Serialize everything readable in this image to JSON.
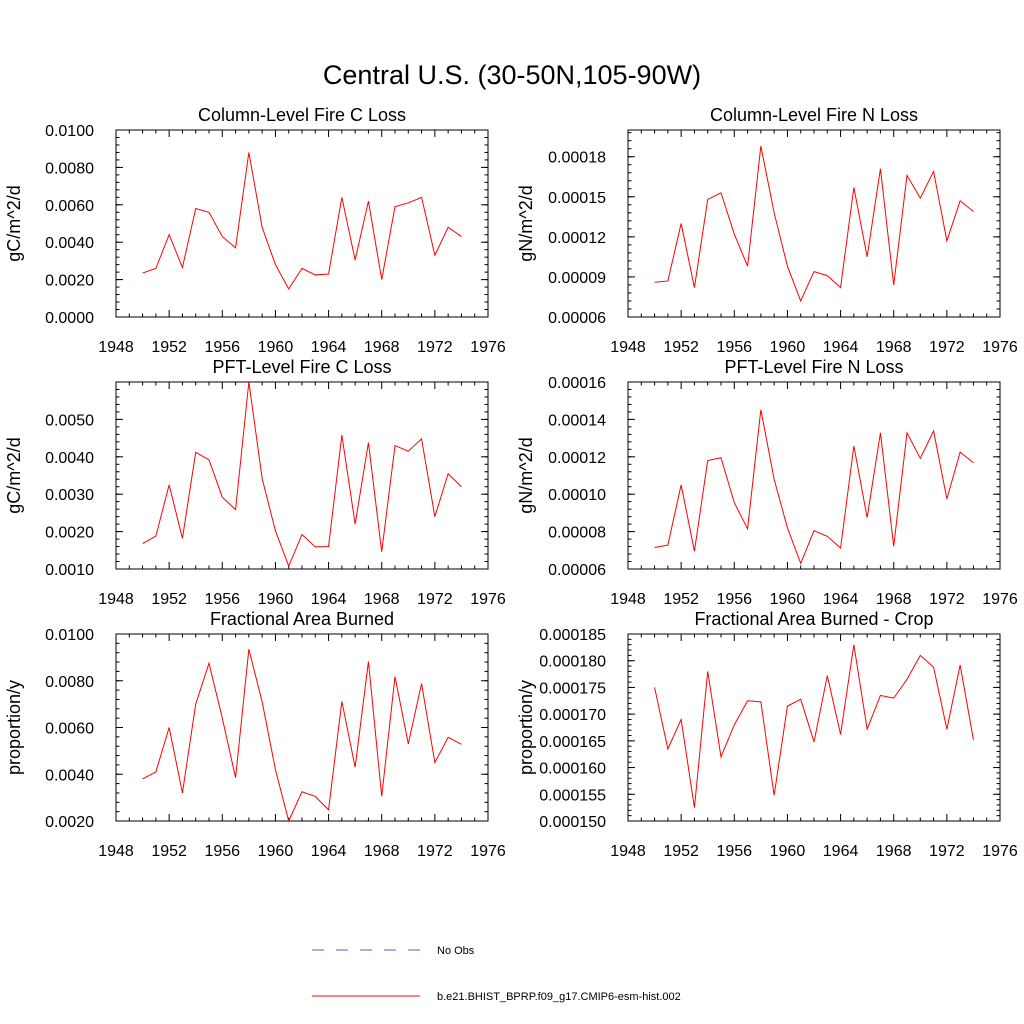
{
  "title": "Central U.S. (30-50N,105-90W)",
  "legend": [
    {
      "label": "No Obs",
      "color": "#5b5bd6",
      "style": "dashed"
    },
    {
      "label": "b.e21.BHIST_BPRP.f09_g17.CMIP6-esm-hist.002",
      "color": "#ff0000",
      "style": "solid"
    }
  ],
  "chart_data": [
    {
      "type": "line",
      "title": "Column-Level Fire C Loss",
      "ylabel": "gC/m^2/d",
      "xlim": [
        1948,
        1976
      ],
      "xticks": [
        "1948",
        "1952",
        "1956",
        "1960",
        "1964",
        "1968",
        "1972",
        "1976"
      ],
      "ylim": [
        0.0,
        0.01
      ],
      "yticks": [
        "0.0000",
        "0.0020",
        "0.0040",
        "0.0060",
        "0.0080",
        "0.0100"
      ],
      "series": [
        {
          "name": "b.e21.BHIST_BPRP.f09_g17.CMIP6-esm-hist.002",
          "color": "#ff0000",
          "x": [
            1950,
            1951,
            1952,
            1953,
            1954,
            1955,
            1956,
            1957,
            1958,
            1959,
            1960,
            1961,
            1962,
            1963,
            1964,
            1965,
            1966,
            1967,
            1968,
            1969,
            1970,
            1971,
            1972,
            1973,
            1974
          ],
          "values": [
            0.00235,
            0.0026,
            0.0044,
            0.00265,
            0.0058,
            0.0056,
            0.0043,
            0.0037,
            0.0088,
            0.0048,
            0.0028,
            0.0015,
            0.0026,
            0.00225,
            0.0023,
            0.0064,
            0.00305,
            0.0062,
            0.002,
            0.0059,
            0.0061,
            0.0064,
            0.0033,
            0.0048,
            0.0043
          ]
        }
      ]
    },
    {
      "type": "line",
      "title": "Column-Level Fire N Loss",
      "ylabel": "gN/m^2/d",
      "xlim": [
        1948,
        1976
      ],
      "xticks": [
        "1948",
        "1952",
        "1956",
        "1960",
        "1964",
        "1968",
        "1972",
        "1976"
      ],
      "ylim": [
        6e-05,
        0.0002
      ],
      "yticks": [
        "0.00006",
        "0.00009",
        "0.00012",
        "0.00015",
        "0.00018"
      ],
      "series": [
        {
          "name": "b.e21.BHIST_BPRP.f09_g17.CMIP6-esm-hist.002",
          "color": "#ff0000",
          "x": [
            1950,
            1951,
            1952,
            1953,
            1954,
            1955,
            1956,
            1957,
            1958,
            1959,
            1960,
            1961,
            1962,
            1963,
            1964,
            1965,
            1966,
            1967,
            1968,
            1969,
            1970,
            1971,
            1972,
            1973,
            1974
          ],
          "values": [
            8.6e-05,
            8.7e-05,
            0.00013,
            8.2e-05,
            0.000148,
            0.000153,
            0.000122,
            9.8e-05,
            0.000188,
            0.000138,
            9.8e-05,
            7.2e-05,
            9.4e-05,
            9.1e-05,
            8.2e-05,
            0.000157,
            0.000105,
            0.000171,
            8.4e-05,
            0.000166,
            0.000149,
            0.000169,
            0.000117,
            0.000147,
            0.000139
          ]
        }
      ]
    },
    {
      "type": "line",
      "title": "PFT-Level Fire C Loss",
      "ylabel": "gC/m^2/d",
      "xlim": [
        1948,
        1976
      ],
      "xticks": [
        "1948",
        "1952",
        "1956",
        "1960",
        "1964",
        "1968",
        "1972",
        "1976"
      ],
      "ylim": [
        0.001,
        0.006
      ],
      "yticks": [
        "0.0010",
        "0.0020",
        "0.0030",
        "0.0040",
        "0.0050"
      ],
      "series": [
        {
          "name": "b.e21.BHIST_BPRP.f09_g17.CMIP6-esm-hist.002",
          "color": "#ff0000",
          "x": [
            1950,
            1951,
            1952,
            1953,
            1954,
            1955,
            1956,
            1957,
            1958,
            1959,
            1960,
            1961,
            1962,
            1963,
            1964,
            1965,
            1966,
            1967,
            1968,
            1969,
            1970,
            1971,
            1972,
            1973,
            1974
          ],
          "values": [
            0.00168,
            0.00188,
            0.00325,
            0.00182,
            0.00412,
            0.00392,
            0.00292,
            0.00259,
            0.006,
            0.00342,
            0.00202,
            0.00108,
            0.00192,
            0.00159,
            0.0016,
            0.00458,
            0.0022,
            0.00438,
            0.00146,
            0.0043,
            0.00415,
            0.00448,
            0.0024,
            0.00355,
            0.0032
          ]
        }
      ]
    },
    {
      "type": "line",
      "title": "PFT-Level Fire N Loss",
      "ylabel": "gN/m^2/d",
      "xlim": [
        1948,
        1976
      ],
      "xticks": [
        "1948",
        "1952",
        "1956",
        "1960",
        "1964",
        "1968",
        "1972",
        "1976"
      ],
      "ylim": [
        6e-05,
        0.00016
      ],
      "yticks": [
        "0.00006",
        "0.00008",
        "0.00010",
        "0.00012",
        "0.00014",
        "0.00016"
      ],
      "series": [
        {
          "name": "b.e21.BHIST_BPRP.f09_g17.CMIP6-esm-hist.002",
          "color": "#ff0000",
          "x": [
            1950,
            1951,
            1952,
            1953,
            1954,
            1955,
            1956,
            1957,
            1958,
            1959,
            1960,
            1961,
            1962,
            1963,
            1964,
            1965,
            1966,
            1967,
            1968,
            1969,
            1970,
            1971,
            1972,
            1973,
            1974
          ],
          "values": [
            7.15e-05,
            7.28e-05,
            0.000105,
            6.95e-05,
            0.000118,
            0.0001195,
            9.55e-05,
            8.15e-05,
            0.0001452,
            0.000108,
            8.2e-05,
            6.3e-05,
            8.05e-05,
            7.75e-05,
            7.12e-05,
            0.0001258,
            8.75e-05,
            0.0001328,
            7.22e-05,
            0.0001328,
            0.0001192,
            0.0001338,
            9.75e-05,
            0.0001225,
            0.0001168
          ]
        }
      ]
    },
    {
      "type": "line",
      "title": "Fractional Area Burned",
      "ylabel": "proportion/y",
      "xlim": [
        1948,
        1976
      ],
      "xticks": [
        "1948",
        "1952",
        "1956",
        "1960",
        "1964",
        "1968",
        "1972",
        "1976"
      ],
      "ylim": [
        0.002,
        0.01
      ],
      "yticks": [
        "0.0020",
        "0.0040",
        "0.0060",
        "0.0080",
        "0.0100"
      ],
      "series": [
        {
          "name": "b.e21.BHIST_BPRP.f09_g17.CMIP6-esm-hist.002",
          "color": "#ff0000",
          "x": [
            1950,
            1951,
            1952,
            1953,
            1954,
            1955,
            1956,
            1957,
            1958,
            1959,
            1960,
            1961,
            1962,
            1963,
            1964,
            1965,
            1966,
            1967,
            1968,
            1969,
            1970,
            1971,
            1972,
            1973,
            1974
          ],
          "values": [
            0.0038,
            0.0041,
            0.006,
            0.0032,
            0.007,
            0.00875,
            0.0064,
            0.00385,
            0.00935,
            0.0071,
            0.0042,
            0.002,
            0.00325,
            0.00305,
            0.00248,
            0.00712,
            0.0043,
            0.00882,
            0.00305,
            0.00818,
            0.0053,
            0.00788,
            0.0045,
            0.00558,
            0.00528
          ]
        }
      ]
    },
    {
      "type": "line",
      "title": "Fractional Area Burned - Crop",
      "ylabel": "proportion/y",
      "xlim": [
        1948,
        1976
      ],
      "xticks": [
        "1948",
        "1952",
        "1956",
        "1960",
        "1964",
        "1968",
        "1972",
        "1976"
      ],
      "ylim": [
        0.00015,
        0.000185
      ],
      "yticks": [
        "0.000150",
        "0.000155",
        "0.000160",
        "0.000165",
        "0.000170",
        "0.000175",
        "0.000180",
        "0.000185"
      ],
      "series": [
        {
          "name": "b.e21.BHIST_BPRP.f09_g17.CMIP6-esm-hist.002",
          "color": "#ff0000",
          "x": [
            1950,
            1951,
            1952,
            1953,
            1954,
            1955,
            1956,
            1957,
            1958,
            1959,
            1960,
            1961,
            1962,
            1963,
            1964,
            1965,
            1966,
            1967,
            1968,
            1969,
            1970,
            1971,
            1972,
            1973,
            1974
          ],
          "values": [
            0.000175,
            0.0001635,
            0.000169,
            0.0001525,
            0.000178,
            0.000162,
            0.000168,
            0.0001725,
            0.0001723,
            0.0001548,
            0.0001715,
            0.0001728,
            0.0001648,
            0.0001772,
            0.0001662,
            0.000183,
            0.0001672,
            0.0001735,
            0.000173,
            0.0001765,
            0.000181,
            0.0001788,
            0.0001672,
            0.0001792,
            0.0001652
          ]
        }
      ]
    }
  ]
}
